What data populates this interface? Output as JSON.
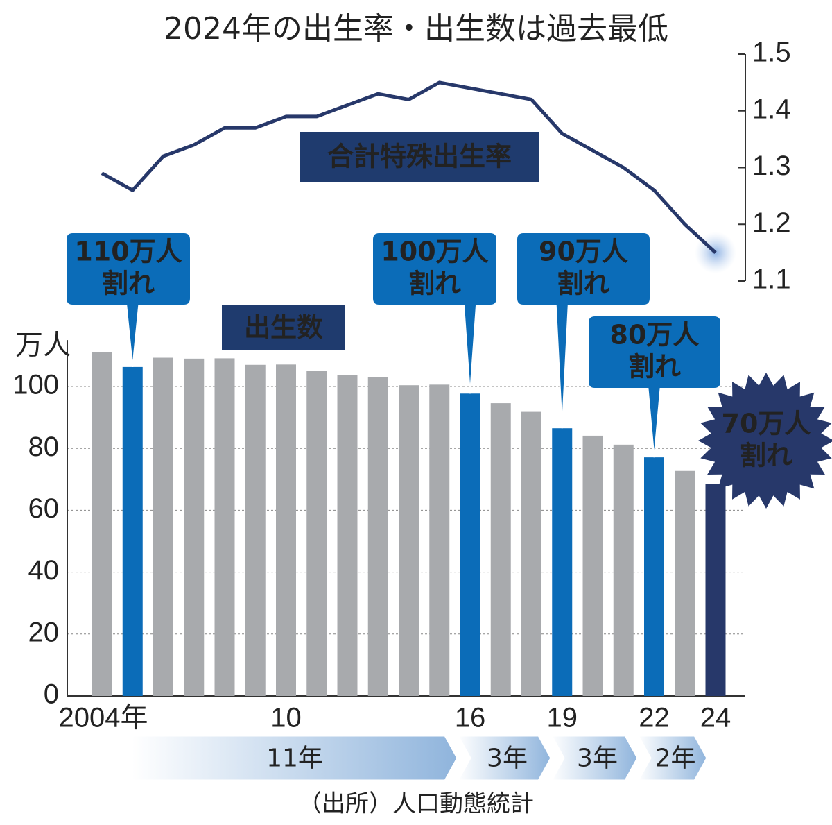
{
  "chart_data": {
    "type": "bar_line",
    "title": "2024年の出生率・出生数は過去最低",
    "categories": [
      "2004年",
      null,
      null,
      null,
      null,
      null,
      "10",
      null,
      null,
      null,
      null,
      null,
      "16",
      null,
      null,
      "19",
      null,
      null,
      "22",
      null,
      "24"
    ],
    "series": [
      {
        "name": "出生数",
        "type": "bar",
        "axis": "y",
        "colors": [
          "#a8aaad",
          "#0b6cb8",
          "#a8aaad",
          "#a8aaad",
          "#a8aaad",
          "#a8aaad",
          "#a8aaad",
          "#a8aaad",
          "#a8aaad",
          "#a8aaad",
          "#a8aaad",
          "#a8aaad",
          "#0b6cb8",
          "#a8aaad",
          "#a8aaad",
          "#0b6cb8",
          "#a8aaad",
          "#a8aaad",
          "#0b6cb8",
          "#a8aaad",
          "#27386a"
        ],
        "values": [
          111.1,
          106.3,
          109.3,
          109.0,
          109.1,
          107.0,
          107.1,
          105.1,
          103.7,
          103.0,
          100.4,
          100.6,
          97.7,
          94.6,
          91.8,
          86.5,
          84.1,
          81.2,
          77.1,
          72.7,
          68.6
        ]
      },
      {
        "name": "合計特殊出生率",
        "type": "line",
        "axis": "y2",
        "color": "#27386a",
        "values": [
          1.29,
          1.26,
          1.32,
          1.34,
          1.37,
          1.37,
          1.39,
          1.39,
          1.41,
          1.43,
          1.42,
          1.45,
          1.44,
          1.43,
          1.42,
          1.36,
          1.33,
          1.3,
          1.26,
          1.2,
          1.15
        ]
      }
    ],
    "y_unit": "万人",
    "ylim": [
      0,
      115
    ],
    "yticks": [
      0,
      20,
      40,
      60,
      80,
      100
    ],
    "y2lim": [
      1.1,
      1.5
    ],
    "y2ticks": [
      1.1,
      1.2,
      1.3,
      1.4,
      1.5
    ],
    "grid": true,
    "annotations": [
      [
        "110万人",
        "割れ"
      ],
      [
        "100万人",
        "割れ"
      ],
      [
        "90万人",
        "割れ"
      ],
      [
        "80万人",
        "割れ"
      ],
      [
        "70万人",
        "割れ"
      ]
    ],
    "intervals": [
      "11年",
      "3年",
      "3年",
      "2年"
    ],
    "source": "（出所）人口動態統計"
  }
}
